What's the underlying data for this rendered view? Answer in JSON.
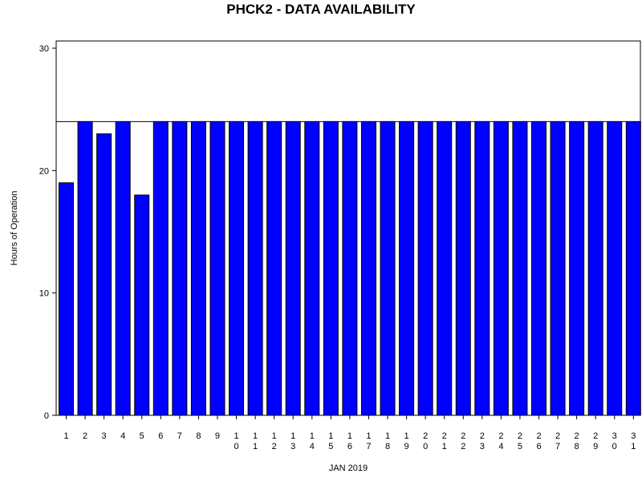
{
  "chart_data": {
    "type": "bar",
    "title": "PHCK2 - DATA AVAILABILITY",
    "xlabel": "JAN 2019",
    "ylabel": "Hours of Operation",
    "ylim": [
      0,
      30
    ],
    "yticks": [
      "0",
      "10",
      "20",
      "30"
    ],
    "reference_line": 24,
    "categories": [
      "1",
      "2",
      "3",
      "4",
      "5",
      "6",
      "7",
      "8",
      "9",
      "10",
      "11",
      "12",
      "13",
      "14",
      "15",
      "16",
      "17",
      "18",
      "19",
      "20",
      "21",
      "22",
      "23",
      "24",
      "25",
      "26",
      "27",
      "28",
      "29",
      "30",
      "31"
    ],
    "values": [
      19,
      24,
      23,
      24,
      18,
      24,
      24,
      24,
      24,
      24,
      24,
      24,
      24,
      24,
      24,
      24,
      24,
      24,
      24,
      24,
      24,
      24,
      24,
      24,
      24,
      24,
      24,
      24,
      24,
      24,
      24
    ],
    "grid": false,
    "colors": {
      "bar": "#0000ff",
      "outline": "#000000",
      "axis": "#000000"
    }
  }
}
